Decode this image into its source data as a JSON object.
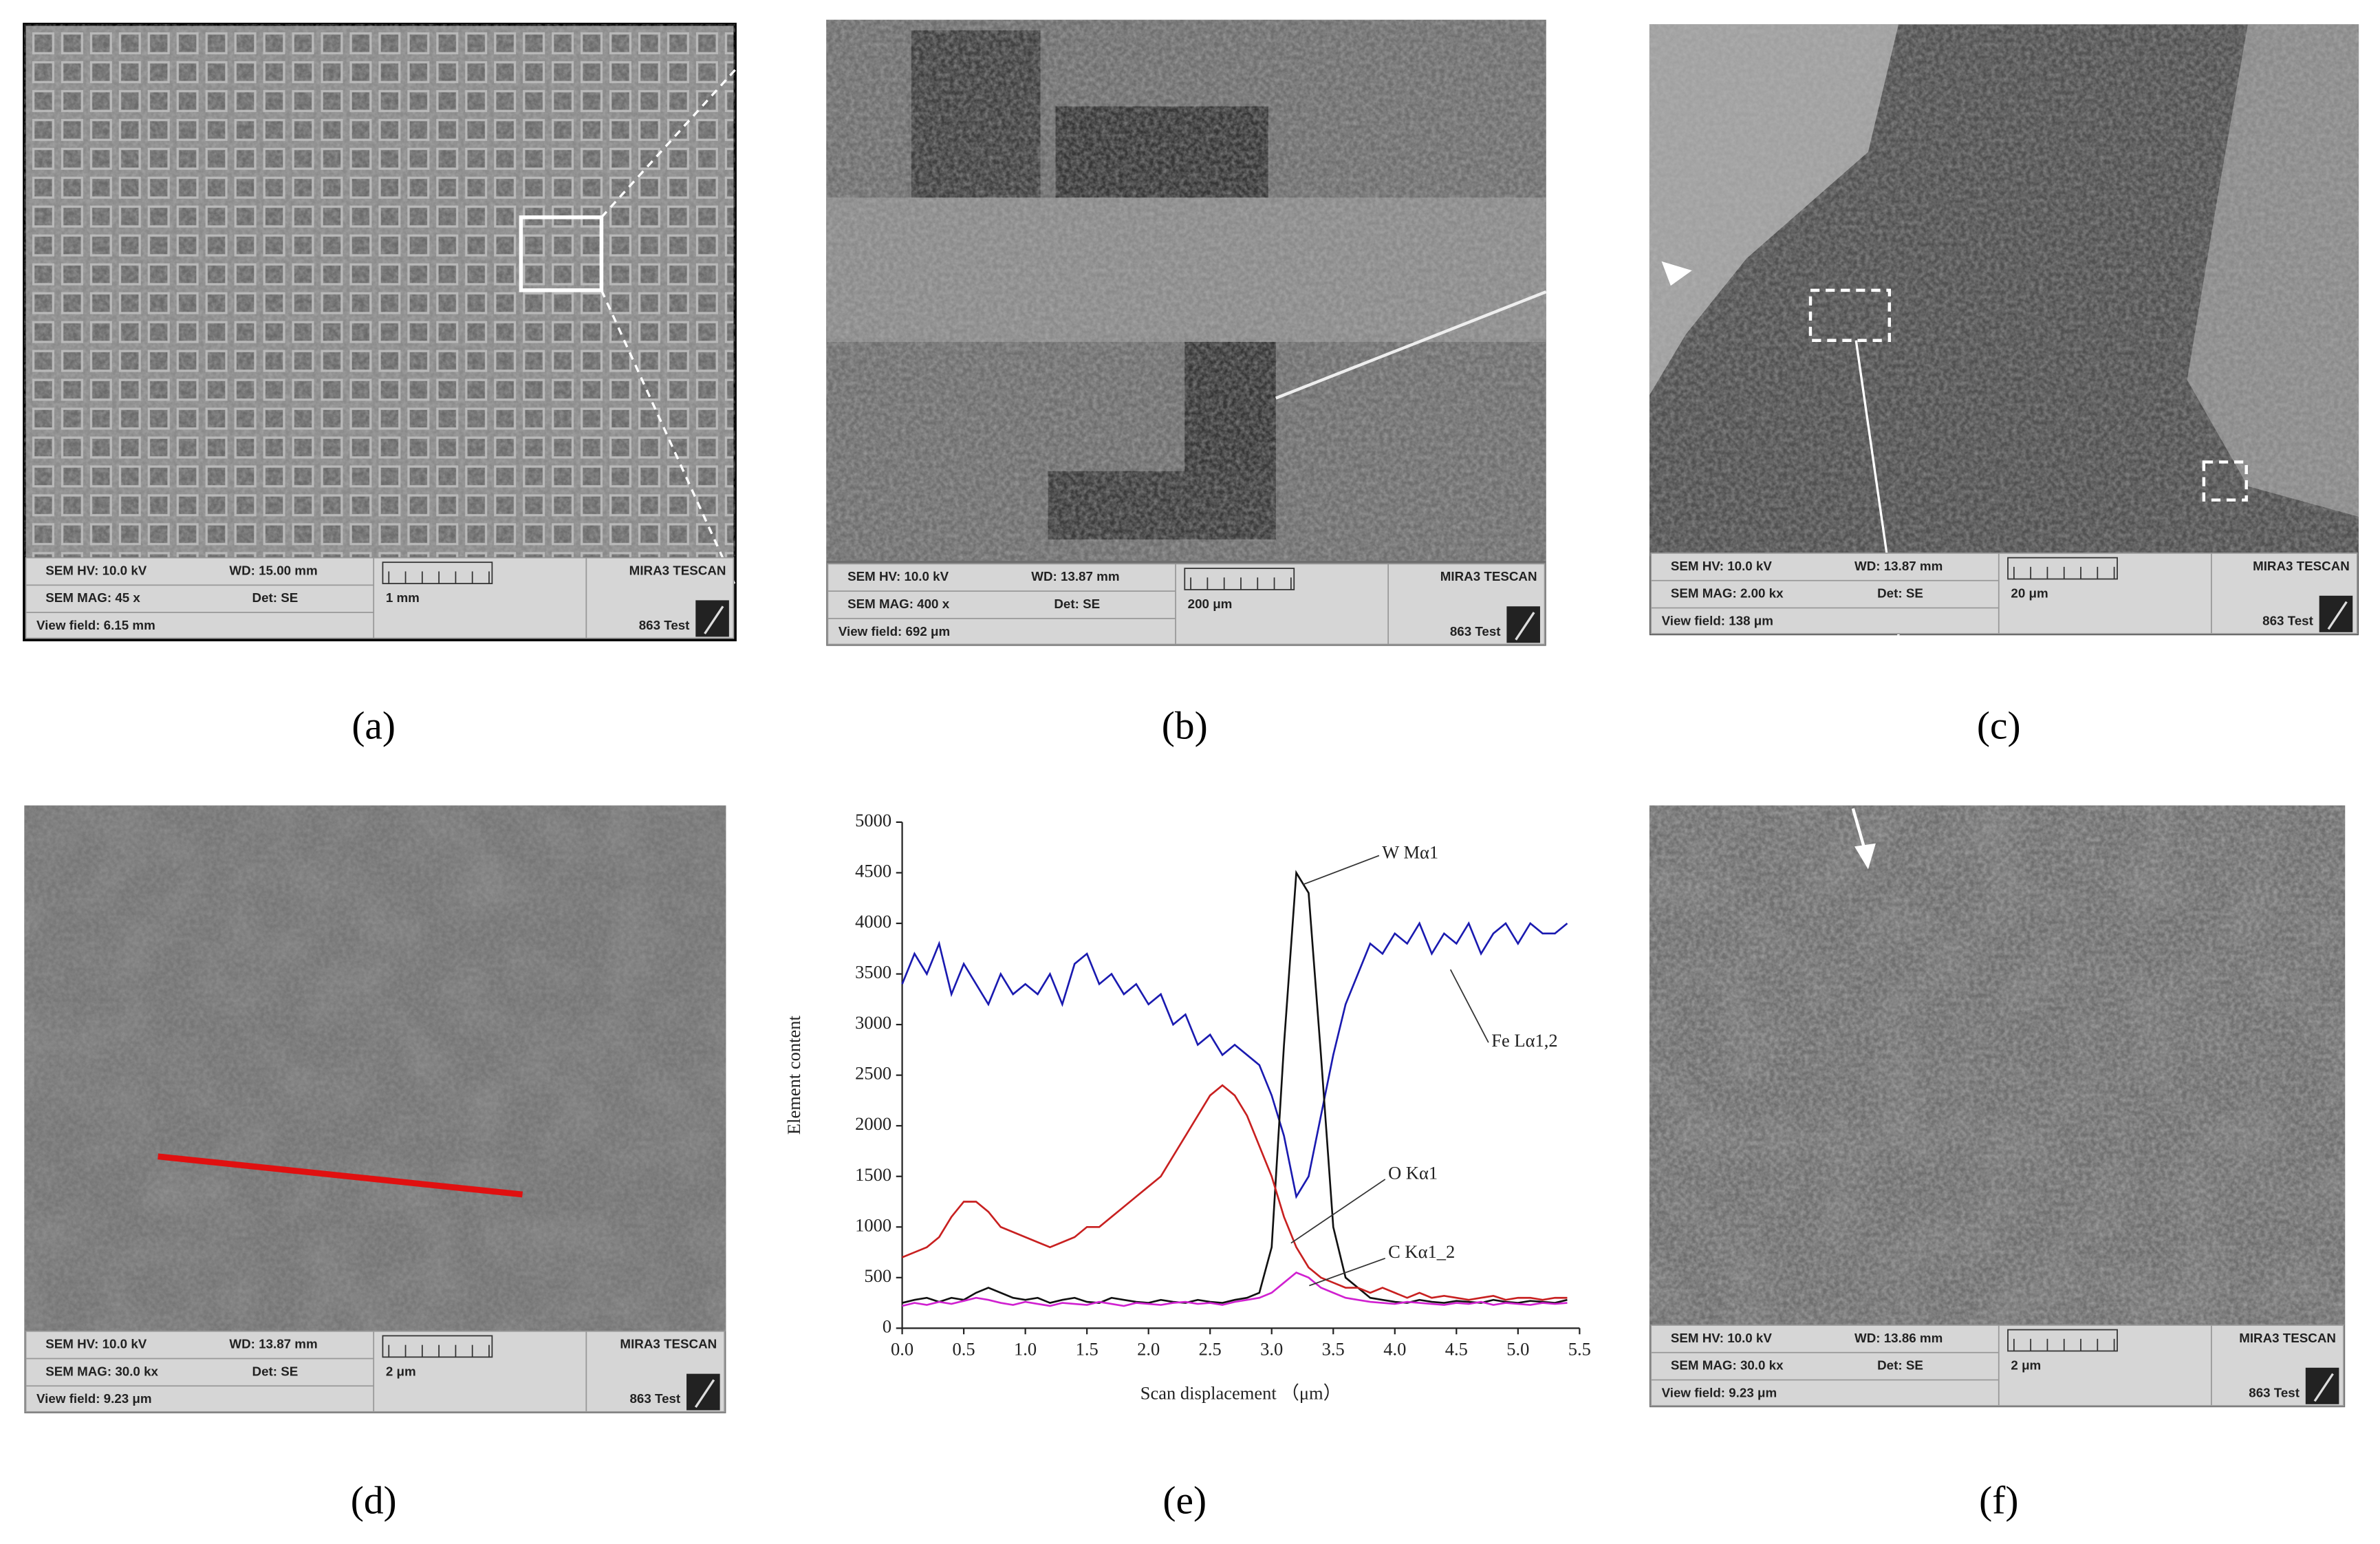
{
  "panels": [
    {
      "label": "(a)",
      "info": {
        "hv": "SEM HV: 10.0 kV",
        "wd": "WD: 15.00 mm",
        "brand": "MIRA3 TESCAN",
        "mag": "SEM MAG: 45 x",
        "det": "Det: SE",
        "scale": "1 mm",
        "view": "View field: 6.15 mm",
        "test": "863 Test"
      }
    },
    {
      "label": "(b)",
      "info": {
        "hv": "SEM HV: 10.0 kV",
        "wd": "WD: 13.87 mm",
        "brand": "MIRA3 TESCAN",
        "mag": "SEM MAG: 400 x",
        "det": "Det: SE",
        "scale": "200 μm",
        "view": "View field: 692 μm",
        "test": "863 Test"
      }
    },
    {
      "label": "(c)",
      "info": {
        "hv": "SEM HV: 10.0 kV",
        "wd": "WD: 13.87 mm",
        "brand": "MIRA3 TESCAN",
        "mag": "SEM MAG: 2.00 kx",
        "det": "Det: SE",
        "scale": "20 μm",
        "view": "View field: 138 μm",
        "test": "863 Test"
      }
    },
    {
      "label": "(d)",
      "info": {
        "hv": "SEM HV: 10.0 kV",
        "wd": "WD: 13.87 mm",
        "brand": "MIRA3 TESCAN",
        "mag": "SEM MAG: 30.0 kx",
        "det": "Det: SE",
        "scale": "2 μm",
        "view": "View field: 9.23 μm",
        "test": "863 Test"
      }
    },
    {
      "label": "(e)"
    },
    {
      "label": "(f)",
      "info": {
        "hv": "SEM HV: 10.0 kV",
        "wd": "WD: 13.86 mm",
        "brand": "MIRA3 TESCAN",
        "mag": "SEM MAG: 30.0 kx",
        "det": "Det: SE",
        "scale": "2 μm",
        "view": "View field: 9.23 μm",
        "test": "863 Test"
      }
    }
  ],
  "chart_data": {
    "type": "line",
    "xlabel": "Scan displacement （μm）",
    "ylabel": "Element content",
    "x": [
      0,
      0.1,
      0.2,
      0.3,
      0.4,
      0.5,
      0.6,
      0.7,
      0.8,
      0.9,
      1.0,
      1.1,
      1.2,
      1.3,
      1.4,
      1.5,
      1.6,
      1.7,
      1.8,
      1.9,
      2.0,
      2.1,
      2.2,
      2.3,
      2.4,
      2.5,
      2.6,
      2.7,
      2.8,
      2.9,
      3.0,
      3.1,
      3.2,
      3.3,
      3.4,
      3.5,
      3.6,
      3.7,
      3.8,
      3.9,
      4.0,
      4.1,
      4.2,
      4.3,
      4.4,
      4.5,
      4.6,
      4.7,
      4.8,
      4.9,
      5.0,
      5.1,
      5.2,
      5.3,
      5.4
    ],
    "xlim": [
      0,
      5.5
    ],
    "ylim": [
      0,
      5000
    ],
    "xticks": [
      {
        "value": 0,
        "label": "0.0"
      },
      0.5,
      {
        "value": 1,
        "label": "1.0"
      },
      1.5,
      {
        "value": 2,
        "label": "2.0"
      },
      2.5,
      {
        "value": 3,
        "label": "3.0"
      },
      3.5,
      {
        "value": 4,
        "label": "4.0"
      },
      4.5,
      {
        "value": 5,
        "label": "5.0"
      },
      5.5
    ],
    "yticks": [
      0,
      500,
      1000,
      1500,
      2000,
      2500,
      3000,
      3500,
      4000,
      4500,
      5000
    ],
    "series": [
      {
        "name": "Fe Lα1,2",
        "color": "#1a1ab0",
        "values": [
          3400,
          3700,
          3500,
          3800,
          3300,
          3600,
          3400,
          3200,
          3500,
          3300,
          3400,
          3300,
          3500,
          3200,
          3600,
          3700,
          3400,
          3500,
          3300,
          3400,
          3200,
          3300,
          3000,
          3100,
          2800,
          2900,
          2700,
          2800,
          2700,
          2600,
          2300,
          1900,
          1300,
          1500,
          2100,
          2700,
          3200,
          3500,
          3800,
          3700,
          3900,
          3800,
          4000,
          3700,
          3900,
          3800,
          4000,
          3700,
          3900,
          4000,
          3800,
          4000,
          3900,
          3900,
          4000
        ]
      },
      {
        "name": "W Mα1",
        "color": "#111111",
        "values": [
          250,
          280,
          300,
          260,
          300,
          280,
          350,
          400,
          350,
          300,
          280,
          300,
          250,
          280,
          300,
          260,
          250,
          300,
          280,
          260,
          250,
          280,
          260,
          250,
          280,
          260,
          250,
          280,
          300,
          350,
          800,
          2800,
          4500,
          4300,
          2700,
          1000,
          500,
          400,
          300,
          280,
          260,
          250,
          280,
          260,
          250,
          270,
          260,
          250,
          280,
          260,
          250,
          270,
          260,
          250,
          280
        ]
      },
      {
        "name": "O Kα1",
        "color": "#c82020",
        "values": [
          700,
          750,
          800,
          900,
          1100,
          1250,
          1250,
          1150,
          1000,
          950,
          900,
          850,
          800,
          850,
          900,
          1000,
          1000,
          1100,
          1200,
          1300,
          1400,
          1500,
          1700,
          1900,
          2100,
          2300,
          2400,
          2300,
          2100,
          1800,
          1500,
          1100,
          800,
          600,
          500,
          450,
          400,
          400,
          350,
          400,
          350,
          300,
          350,
          300,
          320,
          300,
          280,
          300,
          320,
          280,
          300,
          300,
          280,
          300,
          300
        ]
      },
      {
        "name": "C Kα1_2",
        "color": "#d020d0",
        "values": [
          220,
          250,
          230,
          260,
          240,
          270,
          300,
          280,
          250,
          230,
          260,
          240,
          220,
          250,
          240,
          230,
          260,
          240,
          220,
          250,
          240,
          230,
          250,
          260,
          240,
          250,
          230,
          260,
          280,
          300,
          350,
          450,
          550,
          500,
          400,
          350,
          300,
          280,
          260,
          250,
          240,
          260,
          250,
          240,
          230,
          250,
          240,
          260,
          230,
          250,
          240,
          230,
          250,
          240,
          250
        ]
      }
    ]
  }
}
